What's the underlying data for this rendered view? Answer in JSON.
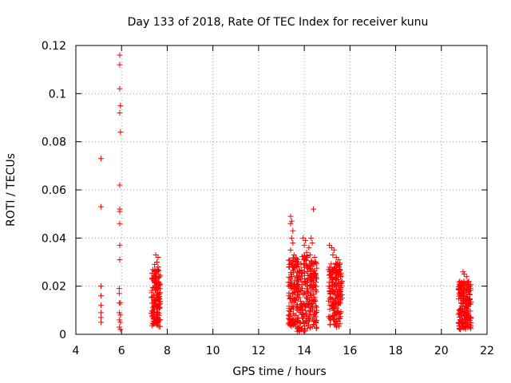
{
  "chart_data": {
    "type": "scatter",
    "title": "Day 133 of 2018, Rate Of TEC Index for receiver kunu",
    "xlabel": "GPS time / hours",
    "ylabel": "ROTI / TECUs",
    "xlim": [
      4,
      22
    ],
    "ylim": [
      0,
      0.12
    ],
    "x_ticks": [
      4,
      6,
      8,
      10,
      12,
      14,
      16,
      18,
      20,
      22
    ],
    "y_ticks": [
      0,
      0.02,
      0.04,
      0.06,
      0.08,
      0.1,
      0.12
    ],
    "x_tick_labels": [
      "4",
      "6",
      "8",
      "10",
      "12",
      "14",
      "16",
      "18",
      "20",
      "22"
    ],
    "y_tick_labels": [
      "0",
      "0.02",
      "0.04",
      "0.06",
      "0.08",
      "0.1",
      "0.12"
    ],
    "grid": true,
    "marker": "+",
    "colors": {
      "points": "#ff0000",
      "grid": "#a0a0a0",
      "axes": "#000000"
    },
    "series": [
      {
        "points": [
          [
            5.1,
            0.073
          ],
          [
            5.1,
            0.053
          ],
          [
            5.1,
            0.02
          ],
          [
            5.1,
            0.016
          ],
          [
            5.1,
            0.012
          ],
          [
            5.1,
            0.009
          ],
          [
            5.1,
            0.007
          ],
          [
            5.1,
            0.005
          ],
          [
            5.92,
            0.116
          ],
          [
            5.92,
            0.112
          ],
          [
            5.92,
            0.102
          ],
          [
            5.95,
            0.095
          ],
          [
            5.92,
            0.092
          ],
          [
            5.95,
            0.084
          ],
          [
            5.92,
            0.062
          ],
          [
            5.92,
            0.052
          ],
          [
            5.92,
            0.051
          ],
          [
            5.92,
            0.046
          ],
          [
            5.92,
            0.037
          ],
          [
            5.92,
            0.031
          ],
          [
            5.9,
            0.019
          ],
          [
            5.9,
            0.017
          ],
          [
            5.9,
            0.013
          ],
          [
            5.95,
            0.013
          ],
          [
            5.9,
            0.009
          ],
          [
            5.95,
            0.008
          ],
          [
            5.9,
            0.006
          ],
          [
            5.95,
            0.005
          ],
          [
            5.9,
            0.003
          ],
          [
            5.95,
            0.002
          ],
          [
            7.5,
            0.033
          ],
          [
            7.6,
            0.032
          ],
          [
            7.55,
            0.03
          ],
          [
            7.45,
            0.029
          ],
          [
            7.6,
            0.028
          ],
          [
            7.5,
            0.026
          ],
          [
            13.4,
            0.049
          ],
          [
            13.45,
            0.047
          ],
          [
            13.4,
            0.046
          ],
          [
            13.5,
            0.043
          ],
          [
            13.45,
            0.04
          ],
          [
            13.5,
            0.038
          ],
          [
            13.4,
            0.035
          ],
          [
            13.55,
            0.033
          ],
          [
            13.95,
            0.04
          ],
          [
            14.05,
            0.039
          ],
          [
            14.0,
            0.037
          ],
          [
            14.1,
            0.034
          ],
          [
            14.2,
            0.036
          ],
          [
            14.3,
            0.04
          ],
          [
            14.35,
            0.038
          ],
          [
            14.25,
            0.033
          ],
          [
            14.4,
            0.052
          ],
          [
            14.45,
            0.032
          ],
          [
            14.5,
            0.03
          ],
          [
            15.1,
            0.037
          ],
          [
            15.2,
            0.036
          ],
          [
            15.3,
            0.035
          ],
          [
            15.25,
            0.033
          ],
          [
            15.4,
            0.032
          ],
          [
            15.5,
            0.031
          ],
          [
            15.55,
            0.027
          ],
          [
            20.95,
            0.026
          ],
          [
            21.0,
            0.025
          ],
          [
            21.1,
            0.024
          ],
          [
            21.2,
            0.022
          ]
        ],
        "clusters": [
          {
            "x_range": [
              7.3,
              7.7
            ],
            "y_range": [
              0.003,
              0.027
            ],
            "count": 150
          },
          {
            "x_range": [
              13.3,
              13.65
            ],
            "y_range": [
              0.003,
              0.032
            ],
            "count": 110
          },
          {
            "x_range": [
              13.65,
              14.15
            ],
            "y_range": [
              0.001,
              0.033
            ],
            "count": 150
          },
          {
            "x_range": [
              14.15,
              14.55
            ],
            "y_range": [
              0.002,
              0.031
            ],
            "count": 120
          },
          {
            "x_range": [
              15.05,
              15.65
            ],
            "y_range": [
              0.003,
              0.03
            ],
            "count": 190
          },
          {
            "x_range": [
              20.75,
              21.3
            ],
            "y_range": [
              0.002,
              0.022
            ],
            "count": 200
          }
        ]
      }
    ]
  }
}
